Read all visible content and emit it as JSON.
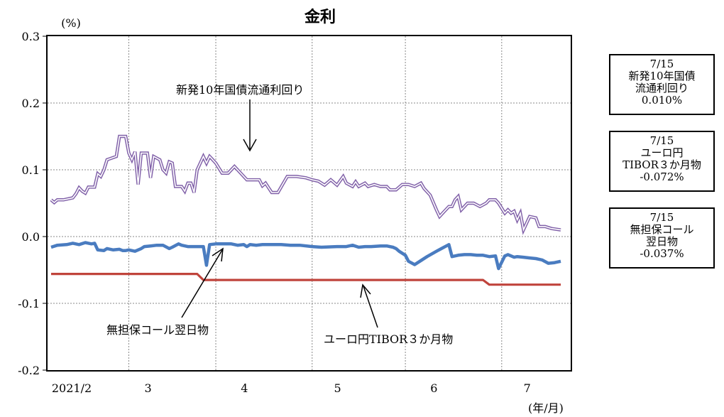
{
  "chart_data": {
    "type": "line",
    "title": "金利",
    "y_unit_label": "(%)",
    "x_unit_label": "(年/月)",
    "ylim": [
      -0.2,
      0.3
    ],
    "y_ticks": [
      0.3,
      0.2,
      0.1,
      0.0,
      -0.1,
      -0.2
    ],
    "y_tick_labels": [
      "0.3",
      "0.2",
      "0.1",
      "0.0",
      "-0.1",
      "-0.2"
    ],
    "x_range": [
      "2021-02-01",
      "2021-07-15"
    ],
    "x_ticks": [
      {
        "date": "2021-02-01",
        "label": "2021/2"
      },
      {
        "date": "2021-03-01",
        "label": "3"
      },
      {
        "date": "2021-04-01",
        "label": "4"
      },
      {
        "date": "2021-05-01",
        "label": "5"
      },
      {
        "date": "2021-06-01",
        "label": "6"
      },
      {
        "date": "2021-07-01",
        "label": "7"
      }
    ],
    "gridlines": [
      "2021-02-26",
      "2021-03-26",
      "2021-04-26",
      "2021-05-26",
      "2021-06-26"
    ],
    "grid": true,
    "series": [
      {
        "name": "新発10年国債流通利回り",
        "color": "#8060a8",
        "style": "double",
        "points": [
          [
            "2021-02-01",
            0.055
          ],
          [
            "2021-02-02",
            0.051
          ],
          [
            "2021-02-03",
            0.055
          ],
          [
            "2021-02-05",
            0.055
          ],
          [
            "2021-02-08",
            0.058
          ],
          [
            "2021-02-09",
            0.064
          ],
          [
            "2021-02-10",
            0.073
          ],
          [
            "2021-02-11",
            0.068
          ],
          [
            "2021-02-12",
            0.065
          ],
          [
            "2021-02-13",
            0.074
          ],
          [
            "2021-02-15",
            0.074
          ],
          [
            "2021-02-16",
            0.094
          ],
          [
            "2021-02-17",
            0.09
          ],
          [
            "2021-02-18",
            0.1
          ],
          [
            "2021-02-19",
            0.115
          ],
          [
            "2021-02-22",
            0.12
          ],
          [
            "2021-02-23",
            0.15
          ],
          [
            "2021-02-25",
            0.15
          ],
          [
            "2021-02-26",
            0.125
          ],
          [
            "2021-02-27",
            0.115
          ],
          [
            "2021-02-28",
            0.127
          ],
          [
            "2021-03-01",
            0.078
          ],
          [
            "2021-03-02",
            0.125
          ],
          [
            "2021-03-04",
            0.125
          ],
          [
            "2021-03-05",
            0.088
          ],
          [
            "2021-03-06",
            0.12
          ],
          [
            "2021-03-08",
            0.115
          ],
          [
            "2021-03-09",
            0.1
          ],
          [
            "2021-03-10",
            0.095
          ],
          [
            "2021-03-11",
            0.112
          ],
          [
            "2021-03-12",
            0.11
          ],
          [
            "2021-03-13",
            0.075
          ],
          [
            "2021-03-15",
            0.075
          ],
          [
            "2021-03-16",
            0.068
          ],
          [
            "2021-03-17",
            0.08
          ],
          [
            "2021-03-18",
            0.08
          ],
          [
            "2021-03-19",
            0.066
          ],
          [
            "2021-03-20",
            0.1
          ],
          [
            "2021-03-22",
            0.12
          ],
          [
            "2021-03-23",
            0.11
          ],
          [
            "2021-03-24",
            0.12
          ],
          [
            "2021-03-25",
            0.115
          ],
          [
            "2021-03-26",
            0.11
          ],
          [
            "2021-03-28",
            0.095
          ],
          [
            "2021-03-30",
            0.095
          ],
          [
            "2021-04-01",
            0.105
          ],
          [
            "2021-04-02",
            0.1
          ],
          [
            "2021-04-05",
            0.085
          ],
          [
            "2021-04-07",
            0.085
          ],
          [
            "2021-04-09",
            0.085
          ],
          [
            "2021-04-10",
            0.076
          ],
          [
            "2021-04-11",
            0.08
          ],
          [
            "2021-04-13",
            0.066
          ],
          [
            "2021-04-15",
            0.066
          ],
          [
            "2021-04-18",
            0.09
          ],
          [
            "2021-04-21",
            0.09
          ],
          [
            "2021-04-24",
            0.088
          ],
          [
            "2021-04-26",
            0.085
          ],
          [
            "2021-04-28",
            0.083
          ],
          [
            "2021-04-30",
            0.077
          ],
          [
            "2021-05-02",
            0.085
          ],
          [
            "2021-05-04",
            0.077
          ],
          [
            "2021-05-06",
            0.09
          ],
          [
            "2021-05-07",
            0.08
          ],
          [
            "2021-05-09",
            0.075
          ],
          [
            "2021-05-10",
            0.082
          ],
          [
            "2021-05-11",
            0.075
          ],
          [
            "2021-05-13",
            0.08
          ],
          [
            "2021-05-14",
            0.075
          ],
          [
            "2021-05-16",
            0.078
          ],
          [
            "2021-05-18",
            0.075
          ],
          [
            "2021-05-20",
            0.075
          ],
          [
            "2021-05-21",
            0.07
          ],
          [
            "2021-05-23",
            0.07
          ],
          [
            "2021-05-25",
            0.078
          ],
          [
            "2021-05-27",
            0.078
          ],
          [
            "2021-05-29",
            0.075
          ],
          [
            "2021-05-31",
            0.08
          ],
          [
            "2021-06-01",
            0.072
          ],
          [
            "2021-06-03",
            0.062
          ],
          [
            "2021-06-05",
            0.04
          ],
          [
            "2021-06-06",
            0.03
          ],
          [
            "2021-06-07",
            0.035
          ],
          [
            "2021-06-09",
            0.045
          ],
          [
            "2021-06-10",
            0.045
          ],
          [
            "2021-06-11",
            0.055
          ],
          [
            "2021-06-12",
            0.06
          ],
          [
            "2021-06-13",
            0.04
          ],
          [
            "2021-06-15",
            0.05
          ],
          [
            "2021-06-17",
            0.05
          ],
          [
            "2021-06-19",
            0.045
          ],
          [
            "2021-06-21",
            0.05
          ],
          [
            "2021-06-22",
            0.055
          ],
          [
            "2021-06-24",
            0.055
          ],
          [
            "2021-06-25",
            0.05
          ],
          [
            "2021-06-27",
            0.035
          ],
          [
            "2021-06-28",
            0.04
          ],
          [
            "2021-06-29",
            0.035
          ],
          [
            "2021-06-30",
            0.038
          ],
          [
            "2021-07-01",
            0.025
          ],
          [
            "2021-07-02",
            0.035
          ],
          [
            "2021-07-03",
            0.01
          ],
          [
            "2021-07-05",
            0.03
          ],
          [
            "2021-07-07",
            0.028
          ],
          [
            "2021-07-08",
            0.015
          ],
          [
            "2021-07-10",
            0.015
          ],
          [
            "2021-07-12",
            0.012
          ],
          [
            "2021-07-15",
            0.01
          ]
        ]
      },
      {
        "name": "無担保コール翌日物",
        "color": "#4a7cc0",
        "style": "thick",
        "points": [
          [
            "2021-02-01",
            -0.016
          ],
          [
            "2021-02-03",
            -0.013
          ],
          [
            "2021-02-06",
            -0.012
          ],
          [
            "2021-02-08",
            -0.01
          ],
          [
            "2021-02-10",
            -0.012
          ],
          [
            "2021-02-12",
            -0.009
          ],
          [
            "2021-02-14",
            -0.011
          ],
          [
            "2021-02-15",
            -0.01
          ],
          [
            "2021-02-16",
            -0.02
          ],
          [
            "2021-02-18",
            -0.021
          ],
          [
            "2021-02-19",
            -0.018
          ],
          [
            "2021-02-21",
            -0.02
          ],
          [
            "2021-02-23",
            -0.019
          ],
          [
            "2021-02-24",
            -0.021
          ],
          [
            "2021-02-25",
            -0.021
          ],
          [
            "2021-02-26",
            -0.02
          ],
          [
            "2021-02-28",
            -0.022
          ],
          [
            "2021-03-01",
            -0.02
          ],
          [
            "2021-03-02",
            -0.018
          ],
          [
            "2021-03-03",
            -0.015
          ],
          [
            "2021-03-05",
            -0.014
          ],
          [
            "2021-03-07",
            -0.013
          ],
          [
            "2021-03-09",
            -0.013
          ],
          [
            "2021-03-11",
            -0.018
          ],
          [
            "2021-03-12",
            -0.016
          ],
          [
            "2021-03-14",
            -0.011
          ],
          [
            "2021-03-15",
            -0.013
          ],
          [
            "2021-03-17",
            -0.015
          ],
          [
            "2021-03-19",
            -0.015
          ],
          [
            "2021-03-22",
            -0.015
          ],
          [
            "2021-03-23",
            -0.043
          ],
          [
            "2021-03-24",
            -0.012
          ],
          [
            "2021-03-26",
            -0.011
          ],
          [
            "2021-03-28",
            -0.011
          ],
          [
            "2021-03-31",
            -0.011
          ],
          [
            "2021-04-02",
            -0.013
          ],
          [
            "2021-04-04",
            -0.012
          ],
          [
            "2021-04-05",
            -0.015
          ],
          [
            "2021-04-06",
            -0.012
          ],
          [
            "2021-04-08",
            -0.013
          ],
          [
            "2021-04-10",
            -0.012
          ],
          [
            "2021-04-13",
            -0.012
          ],
          [
            "2021-04-16",
            -0.012
          ],
          [
            "2021-04-19",
            -0.013
          ],
          [
            "2021-04-22",
            -0.013
          ],
          [
            "2021-04-26",
            -0.015
          ],
          [
            "2021-04-29",
            -0.016
          ],
          [
            "2021-05-04",
            -0.015
          ],
          [
            "2021-05-07",
            -0.015
          ],
          [
            "2021-05-09",
            -0.013
          ],
          [
            "2021-05-11",
            -0.016
          ],
          [
            "2021-05-13",
            -0.015
          ],
          [
            "2021-05-15",
            -0.015
          ],
          [
            "2021-05-18",
            -0.014
          ],
          [
            "2021-05-20",
            -0.014
          ],
          [
            "2021-05-22",
            -0.016
          ],
          [
            "2021-05-23",
            -0.018
          ],
          [
            "2021-05-24",
            -0.022
          ],
          [
            "2021-05-26",
            -0.028
          ],
          [
            "2021-05-27",
            -0.037
          ],
          [
            "2021-05-29",
            -0.042
          ],
          [
            "2021-05-31",
            -0.036
          ],
          [
            "2021-06-02",
            -0.03
          ],
          [
            "2021-06-05",
            -0.022
          ],
          [
            "2021-06-07",
            -0.017
          ],
          [
            "2021-06-09",
            -0.012
          ],
          [
            "2021-06-10",
            -0.03
          ],
          [
            "2021-06-12",
            -0.028
          ],
          [
            "2021-06-14",
            -0.027
          ],
          [
            "2021-06-16",
            -0.027
          ],
          [
            "2021-06-18",
            -0.028
          ],
          [
            "2021-06-20",
            -0.028
          ],
          [
            "2021-06-22",
            -0.03
          ],
          [
            "2021-06-24",
            -0.029
          ],
          [
            "2021-06-25",
            -0.048
          ],
          [
            "2021-06-27",
            -0.029
          ],
          [
            "2021-06-28",
            -0.027
          ],
          [
            "2021-06-30",
            -0.031
          ],
          [
            "2021-07-01",
            -0.03
          ],
          [
            "2021-07-03",
            -0.031
          ],
          [
            "2021-07-05",
            -0.032
          ],
          [
            "2021-07-07",
            -0.033
          ],
          [
            "2021-07-09",
            -0.035
          ],
          [
            "2021-07-11",
            -0.04
          ],
          [
            "2021-07-13",
            -0.039
          ],
          [
            "2021-07-15",
            -0.037
          ]
        ]
      },
      {
        "name": "ユーロ円TIBOR３か月物",
        "color": "#c0443c",
        "style": "thick",
        "points": [
          [
            "2021-02-01",
            -0.056
          ],
          [
            "2021-03-20",
            -0.056
          ],
          [
            "2021-03-22",
            -0.065
          ],
          [
            "2021-06-20",
            -0.065
          ],
          [
            "2021-06-22",
            -0.072
          ],
          [
            "2021-07-15",
            -0.072
          ]
        ]
      }
    ],
    "annotations": [
      {
        "text": "新発10年国債流通利回り",
        "series": "新発10年国債流通利回り"
      },
      {
        "text": "無担保コール翌日物",
        "series": "無担保コール翌日物"
      },
      {
        "text": "ユーロ円TIBOR３か月物",
        "series": "ユーロ円TIBOR３か月物"
      }
    ],
    "side_boxes": [
      {
        "date": "7/15",
        "lines": [
          "新発10年国債",
          "流通利回り"
        ],
        "value": "0.010%"
      },
      {
        "date": "7/15",
        "lines": [
          "ユーロ円",
          "TIBOR３か月物"
        ],
        "value": "-0.072%"
      },
      {
        "date": "7/15",
        "lines": [
          "無担保コール",
          "翌日物"
        ],
        "value": "-0.037%"
      }
    ]
  }
}
